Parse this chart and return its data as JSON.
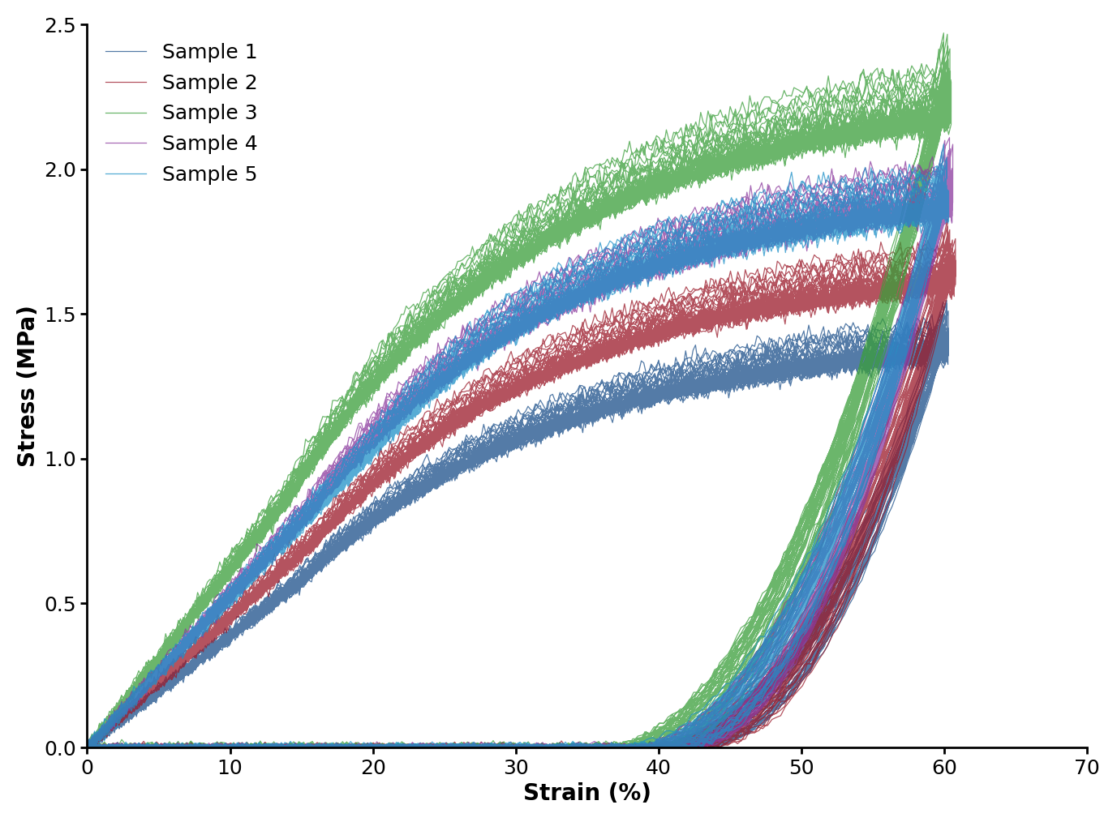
{
  "xlabel": "Strain (%)",
  "ylabel": "Stress (MPa)",
  "xlim": [
    0,
    70
  ],
  "ylim": [
    0,
    2.5
  ],
  "xticks": [
    0,
    10,
    20,
    30,
    40,
    50,
    60,
    70
  ],
  "yticks": [
    0.0,
    0.5,
    1.0,
    1.5,
    2.0,
    2.5
  ],
  "samples": [
    {
      "name": "Sample 1",
      "color": "#1b4f8a",
      "max_strain": 60.0,
      "max_stress": 1.55,
      "toe_end_strain": 15.0,
      "noise_load": 0.018,
      "noise_unload": 0.012,
      "n_cycles": 50,
      "unload_spread": 2.5,
      "unload_curvature": 2.2
    },
    {
      "name": "Sample 2",
      "color": "#9b1a2a",
      "max_strain": 60.5,
      "max_stress": 1.82,
      "toe_end_strain": 16.0,
      "noise_load": 0.018,
      "noise_unload": 0.012,
      "n_cycles": 50,
      "unload_spread": 2.5,
      "unload_curvature": 2.2
    },
    {
      "name": "Sample 3",
      "color": "#3a9e3a",
      "max_strain": 60.2,
      "max_stress": 2.48,
      "toe_end_strain": 14.0,
      "noise_load": 0.022,
      "noise_unload": 0.015,
      "n_cycles": 50,
      "unload_spread": 2.8,
      "unload_curvature": 2.0
    },
    {
      "name": "Sample 4",
      "color": "#8b3a9e",
      "max_strain": 60.3,
      "max_stress": 2.12,
      "toe_end_strain": 15.5,
      "noise_load": 0.02,
      "noise_unload": 0.013,
      "n_cycles": 50,
      "unload_spread": 2.6,
      "unload_curvature": 2.1
    },
    {
      "name": "Sample 5",
      "color": "#1e90c8",
      "max_strain": 60.0,
      "max_stress": 2.08,
      "toe_end_strain": 20.0,
      "noise_load": 0.02,
      "noise_unload": 0.013,
      "n_cycles": 50,
      "unload_spread": 2.6,
      "unload_curvature": 2.1
    }
  ],
  "linewidth": 0.9,
  "background_color": "#ffffff",
  "font_size": 20,
  "tick_fontsize": 18
}
